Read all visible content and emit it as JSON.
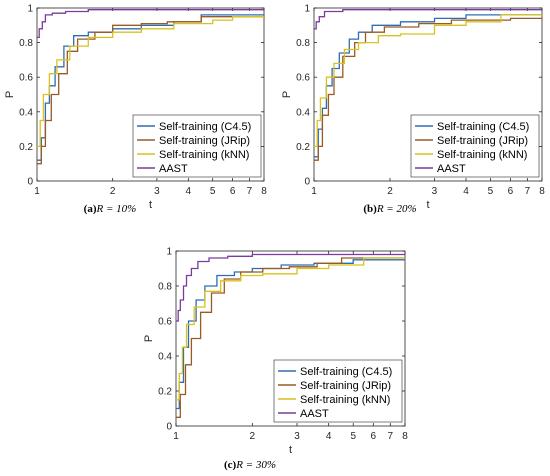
{
  "chart_data": [
    {
      "type": "line",
      "panel_letter": "(a)",
      "caption_math": "R = 10%",
      "xlabel": "t",
      "ylabel": "P",
      "x_scale": "log",
      "xlim": [
        1,
        8
      ],
      "ylim": [
        0,
        1
      ],
      "xticks": [
        "1",
        "2",
        "3",
        "4",
        "5",
        "6",
        "7",
        "8"
      ],
      "yticks": [
        "0",
        "0.2",
        "0.4",
        "0.6",
        "0.8",
        "1"
      ],
      "legend_position": "lower-right",
      "grid": false,
      "series": [
        {
          "name": "Self-training (C4.5)",
          "color": "#2f6db3",
          "points": [
            [
              1,
              0.12
            ],
            [
              1.04,
              0.25
            ],
            [
              1.08,
              0.45
            ],
            [
              1.12,
              0.55
            ],
            [
              1.18,
              0.66
            ],
            [
              1.28,
              0.78
            ],
            [
              1.4,
              0.84
            ],
            [
              1.6,
              0.86
            ],
            [
              2.0,
              0.88
            ],
            [
              2.6,
              0.9
            ],
            [
              3.5,
              0.92
            ],
            [
              4.5,
              0.96
            ],
            [
              8,
              0.96
            ]
          ]
        },
        {
          "name": "Self-training (JRip)",
          "color": "#9a5a22",
          "points": [
            [
              1,
              0.1
            ],
            [
              1.04,
              0.2
            ],
            [
              1.08,
              0.35
            ],
            [
              1.14,
              0.5
            ],
            [
              1.22,
              0.62
            ],
            [
              1.32,
              0.75
            ],
            [
              1.45,
              0.82
            ],
            [
              1.7,
              0.86
            ],
            [
              2.0,
              0.9
            ],
            [
              2.6,
              0.91
            ],
            [
              3.3,
              0.92
            ],
            [
              4.5,
              0.95
            ],
            [
              8,
              0.96
            ]
          ]
        },
        {
          "name": "Self-training (kNN)",
          "color": "#d8c21f",
          "points": [
            [
              1,
              0.2
            ],
            [
              1.03,
              0.35
            ],
            [
              1.06,
              0.5
            ],
            [
              1.12,
              0.62
            ],
            [
              1.2,
              0.7
            ],
            [
              1.35,
              0.78
            ],
            [
              1.6,
              0.83
            ],
            [
              2.0,
              0.86
            ],
            [
              2.6,
              0.88
            ],
            [
              3.5,
              0.91
            ],
            [
              5,
              0.93
            ],
            [
              6,
              0.95
            ],
            [
              8,
              0.95
            ]
          ]
        },
        {
          "name": "AAST",
          "color": "#7b3aa0",
          "points": [
            [
              1,
              0.83
            ],
            [
              1.02,
              0.88
            ],
            [
              1.05,
              0.92
            ],
            [
              1.08,
              0.96
            ],
            [
              1.15,
              0.97
            ],
            [
              1.3,
              0.98
            ],
            [
              1.6,
              0.99
            ],
            [
              8,
              0.99
            ]
          ]
        }
      ]
    },
    {
      "type": "line",
      "panel_letter": "(b)",
      "caption_math": "R = 20%",
      "xlabel": "t",
      "ylabel": "P",
      "x_scale": "log",
      "xlim": [
        1,
        8
      ],
      "ylim": [
        0,
        1
      ],
      "xticks": [
        "1",
        "2",
        "3",
        "4",
        "5",
        "6",
        "7",
        "8"
      ],
      "yticks": [
        "0",
        "0.2",
        "0.4",
        "0.6",
        "0.8",
        "1"
      ],
      "legend_position": "lower-right",
      "grid": false,
      "series": [
        {
          "name": "Self-training (C4.5)",
          "color": "#2f6db3",
          "points": [
            [
              1,
              0.14
            ],
            [
              1.04,
              0.3
            ],
            [
              1.08,
              0.42
            ],
            [
              1.12,
              0.55
            ],
            [
              1.18,
              0.65
            ],
            [
              1.26,
              0.74
            ],
            [
              1.38,
              0.82
            ],
            [
              1.5,
              0.86
            ],
            [
              1.7,
              0.9
            ],
            [
              2.2,
              0.92
            ],
            [
              3.0,
              0.94
            ],
            [
              4.0,
              0.96
            ],
            [
              8,
              0.96
            ]
          ]
        },
        {
          "name": "Self-training (JRip)",
          "color": "#9a5a22",
          "points": [
            [
              1,
              0.12
            ],
            [
              1.04,
              0.2
            ],
            [
              1.08,
              0.38
            ],
            [
              1.14,
              0.5
            ],
            [
              1.2,
              0.6
            ],
            [
              1.3,
              0.72
            ],
            [
              1.45,
              0.8
            ],
            [
              1.6,
              0.86
            ],
            [
              1.9,
              0.89
            ],
            [
              2.6,
              0.91
            ],
            [
              3.5,
              0.93
            ],
            [
              6,
              0.94
            ],
            [
              8,
              0.94
            ]
          ]
        },
        {
          "name": "Self-training (kNN)",
          "color": "#d8c21f",
          "points": [
            [
              1,
              0.2
            ],
            [
              1.03,
              0.35
            ],
            [
              1.06,
              0.48
            ],
            [
              1.12,
              0.6
            ],
            [
              1.2,
              0.68
            ],
            [
              1.32,
              0.76
            ],
            [
              1.5,
              0.8
            ],
            [
              1.8,
              0.84
            ],
            [
              2.2,
              0.85
            ],
            [
              3.0,
              0.9
            ],
            [
              4.0,
              0.92
            ],
            [
              5.5,
              0.96
            ],
            [
              8,
              0.96
            ]
          ]
        },
        {
          "name": "AAST",
          "color": "#7b3aa0",
          "points": [
            [
              1,
              0.88
            ],
            [
              1.02,
              0.92
            ],
            [
              1.05,
              0.95
            ],
            [
              1.1,
              0.98
            ],
            [
              1.3,
              0.99
            ],
            [
              8,
              0.99
            ]
          ]
        }
      ]
    },
    {
      "type": "line",
      "panel_letter": "(c)",
      "caption_math": "R = 30%",
      "xlabel": "t",
      "ylabel": "P",
      "x_scale": "log",
      "xlim": [
        1,
        8
      ],
      "ylim": [
        0,
        1
      ],
      "xticks": [
        "1",
        "2",
        "3",
        "4",
        "5",
        "6",
        "7",
        "8"
      ],
      "yticks": [
        "0",
        "0.2",
        "0.4",
        "0.6",
        "0.8",
        "1"
      ],
      "legend_position": "lower-right",
      "grid": false,
      "series": [
        {
          "name": "Self-training (C4.5)",
          "color": "#2f6db3",
          "points": [
            [
              1,
              0.1
            ],
            [
              1.03,
              0.25
            ],
            [
              1.07,
              0.45
            ],
            [
              1.12,
              0.6
            ],
            [
              1.2,
              0.72
            ],
            [
              1.3,
              0.8
            ],
            [
              1.45,
              0.86
            ],
            [
              1.7,
              0.88
            ],
            [
              2.0,
              0.9
            ],
            [
              2.6,
              0.92
            ],
            [
              3.5,
              0.93
            ],
            [
              5,
              0.95
            ],
            [
              8,
              0.95
            ]
          ]
        },
        {
          "name": "Self-training (JRip)",
          "color": "#9a5a22",
          "points": [
            [
              1,
              0.05
            ],
            [
              1.04,
              0.18
            ],
            [
              1.09,
              0.35
            ],
            [
              1.15,
              0.5
            ],
            [
              1.25,
              0.65
            ],
            [
              1.38,
              0.76
            ],
            [
              1.55,
              0.84
            ],
            [
              1.8,
              0.88
            ],
            [
              2.2,
              0.9
            ],
            [
              2.8,
              0.91
            ],
            [
              3.6,
              0.93
            ],
            [
              4.5,
              0.96
            ],
            [
              8,
              0.96
            ]
          ]
        },
        {
          "name": "Self-training (kNN)",
          "color": "#d8c21f",
          "points": [
            [
              1,
              0.15
            ],
            [
              1.03,
              0.3
            ],
            [
              1.06,
              0.45
            ],
            [
              1.1,
              0.58
            ],
            [
              1.18,
              0.68
            ],
            [
              1.3,
              0.77
            ],
            [
              1.5,
              0.83
            ],
            [
              1.8,
              0.86
            ],
            [
              2.2,
              0.87
            ],
            [
              3.0,
              0.9
            ],
            [
              4.0,
              0.92
            ],
            [
              5.5,
              0.96
            ],
            [
              8,
              0.96
            ]
          ]
        },
        {
          "name": "AAST",
          "color": "#7b3aa0",
          "points": [
            [
              1,
              0.6
            ],
            [
              1.02,
              0.66
            ],
            [
              1.04,
              0.72
            ],
            [
              1.07,
              0.8
            ],
            [
              1.1,
              0.86
            ],
            [
              1.15,
              0.9
            ],
            [
              1.22,
              0.94
            ],
            [
              1.35,
              0.96
            ],
            [
              1.6,
              0.97
            ],
            [
              2.0,
              0.98
            ],
            [
              3.0,
              0.98
            ],
            [
              8,
              0.98
            ]
          ]
        }
      ]
    }
  ]
}
